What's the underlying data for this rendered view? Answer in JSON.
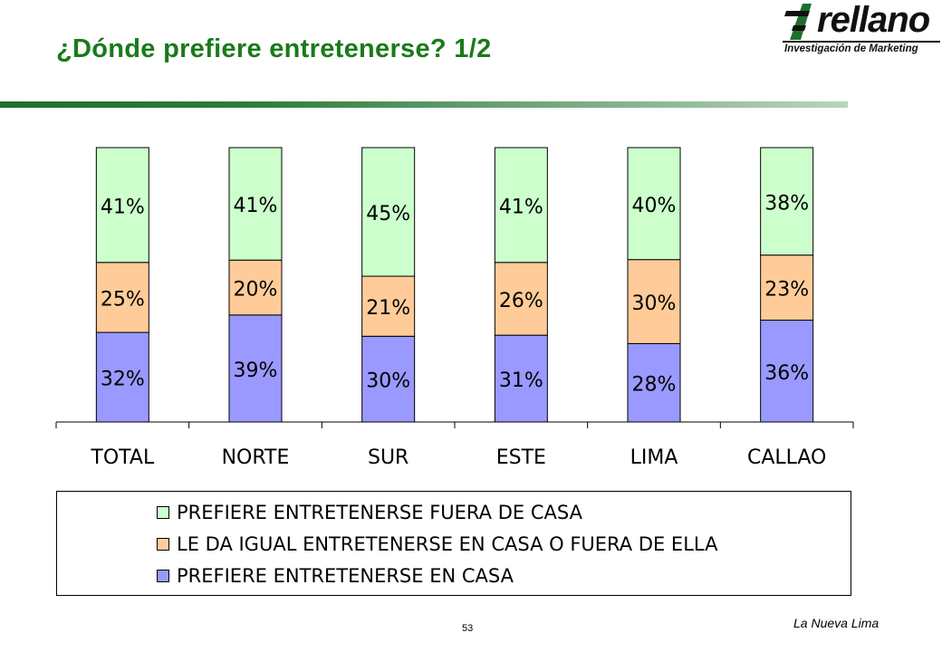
{
  "header": {
    "title": "¿Dónde prefiere entretenerse? 1/2",
    "logo_word": "rellano",
    "logo_sub": "Investigación de Marketing"
  },
  "footer": {
    "page_number": "53",
    "report_name": "La Nueva Lima"
  },
  "colors": {
    "en_casa": "#9999ff",
    "igual": "#ffcc99",
    "fuera": "#ccffcc",
    "title": "#1a7a1a"
  },
  "chart_data": {
    "type": "bar",
    "stacked": true,
    "percent": true,
    "categories": [
      "TOTAL",
      "NORTE",
      "SUR",
      "ESTE",
      "LIMA",
      "CALLAO"
    ],
    "series": [
      {
        "name": "PREFIERE ENTRETENERSE EN CASA",
        "color": "#9999ff",
        "values": [
          32,
          39,
          30,
          31,
          28,
          36
        ]
      },
      {
        "name": "LE DA IGUAL ENTRETENERSE EN CASA O FUERA DE ELLA",
        "color": "#ffcc99",
        "values": [
          25,
          20,
          21,
          26,
          30,
          23
        ]
      },
      {
        "name": "PREFIERE ENTRETENERSE FUERA DE CASA",
        "color": "#ccffcc",
        "values": [
          41,
          41,
          45,
          41,
          40,
          38
        ]
      }
    ],
    "data_labels": [
      [
        "32%",
        "39%",
        "30%",
        "31%",
        "28%",
        "36%"
      ],
      [
        "25%",
        "20%",
        "21%",
        "26%",
        "30%",
        "23%"
      ],
      [
        "41%",
        "41%",
        "45%",
        "41%",
        "40%",
        "38%"
      ]
    ],
    "legend": [
      {
        "label": "PREFIERE ENTRETENERSE FUERA DE CASA",
        "color": "#ccffcc"
      },
      {
        "label": "LE DA IGUAL ENTRETENERSE EN CASA O FUERA DE ELLA",
        "color": "#ffcc99"
      },
      {
        "label": "PREFIERE ENTRETENERSE EN CASA",
        "color": "#9999ff"
      }
    ],
    "legend_position": "bottom",
    "grid": false
  }
}
